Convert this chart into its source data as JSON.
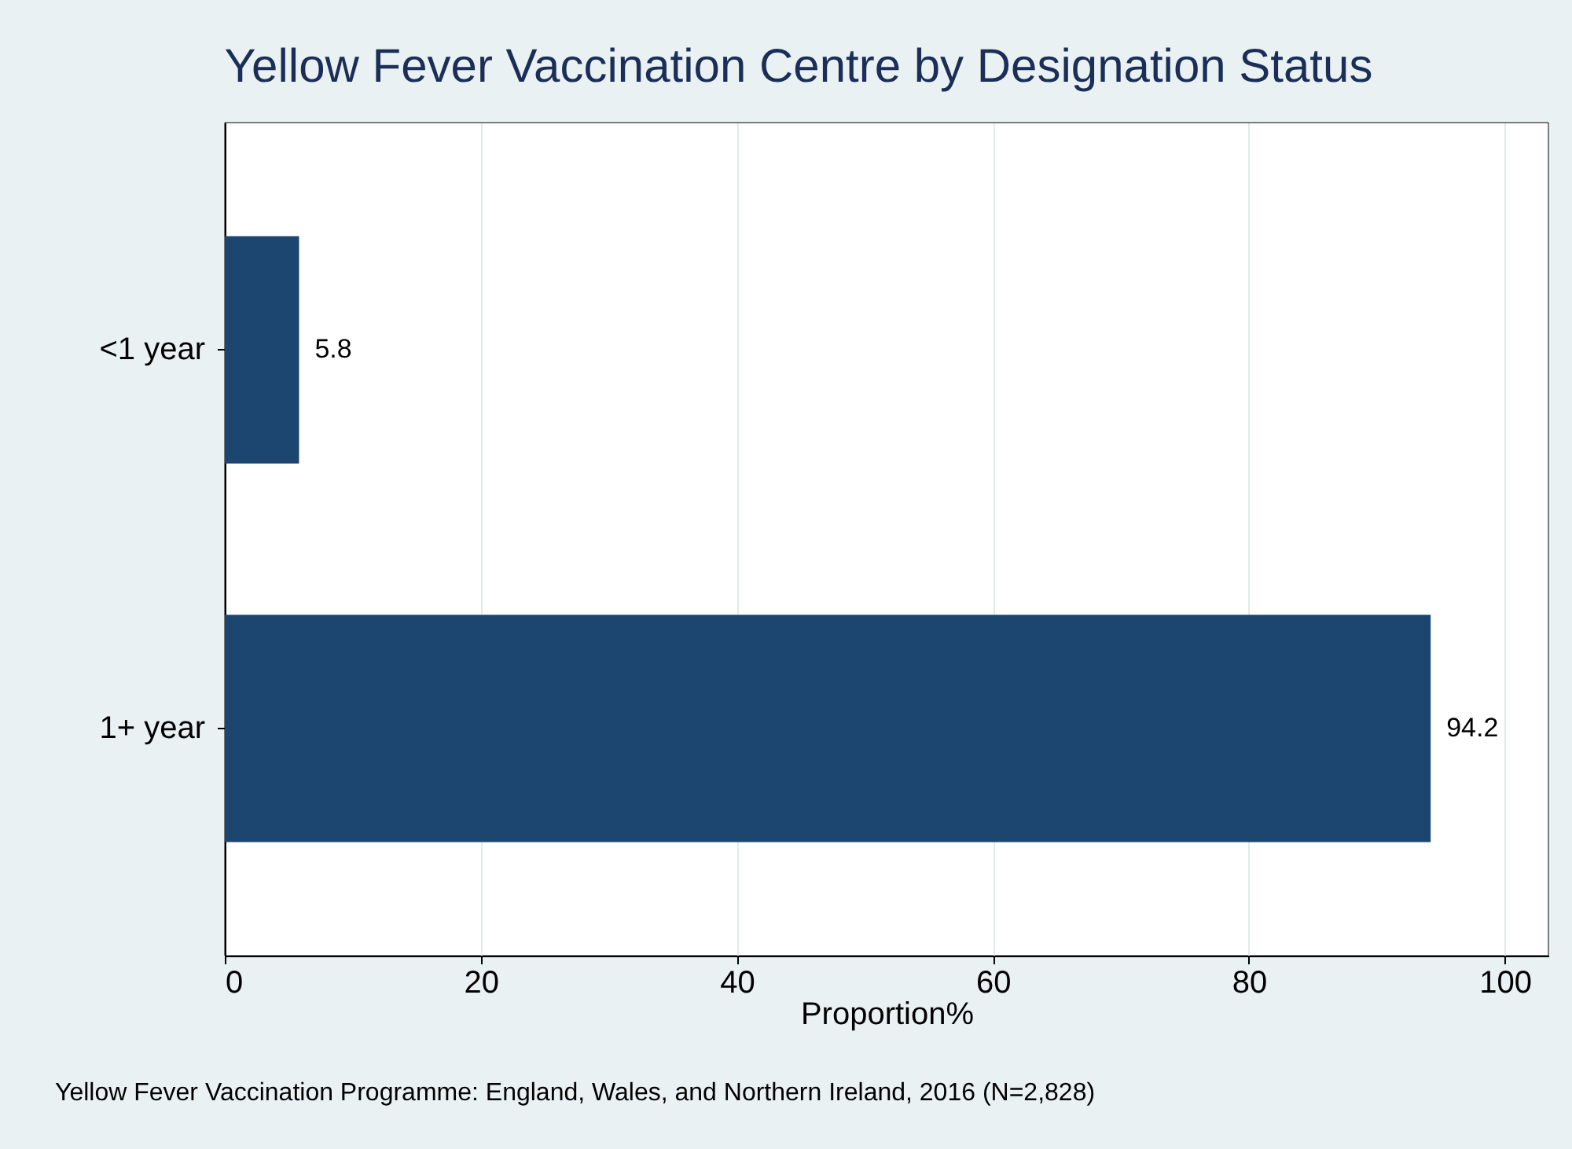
{
  "chart_data": {
    "type": "bar",
    "orientation": "horizontal",
    "title": "Yellow Fever Vaccination Centre by Designation Status",
    "categories": [
      "<1 year",
      "1+ year"
    ],
    "values": [
      5.8,
      94.2
    ],
    "color": "#1c4670",
    "xlabel": "Proportion%",
    "xlim": [
      0,
      103.4
    ],
    "xticks": [
      0,
      20,
      40,
      60,
      80,
      100
    ],
    "grid": "x",
    "data_labels": true,
    "annotations": [
      "Yellow Fever Vaccination Programme: England, Wales, and Northern Ireland, 2016 (N=2,828)"
    ]
  }
}
